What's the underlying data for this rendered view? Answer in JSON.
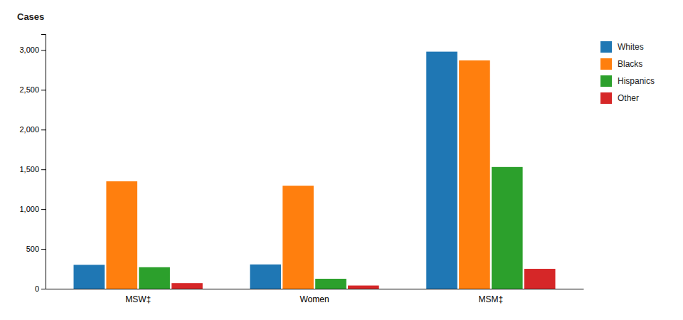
{
  "chart_data": {
    "type": "bar",
    "ylabel": "Cases",
    "categories": [
      "MSW‡",
      "Women",
      "MSM‡"
    ],
    "series": [
      {
        "name": "Whites",
        "values": [
          300,
          305,
          2980
        ]
      },
      {
        "name": "Blacks",
        "values": [
          1350,
          1295,
          2870
        ]
      },
      {
        "name": "Hispanics",
        "values": [
          270,
          125,
          1530
        ]
      },
      {
        "name": "Other",
        "values": [
          70,
          40,
          250
        ]
      }
    ],
    "ylim": [
      0,
      3200
    ],
    "yticks": [
      0,
      500,
      {
        "value": 1000,
        "label": "1,000"
      },
      {
        "value": 1500,
        "label": "1,500"
      },
      {
        "value": 2000,
        "label": "2,000"
      },
      {
        "value": 2500,
        "label": "2,500"
      },
      {
        "value": 3000,
        "label": "3,000"
      }
    ],
    "grid": false,
    "legend": "right"
  }
}
